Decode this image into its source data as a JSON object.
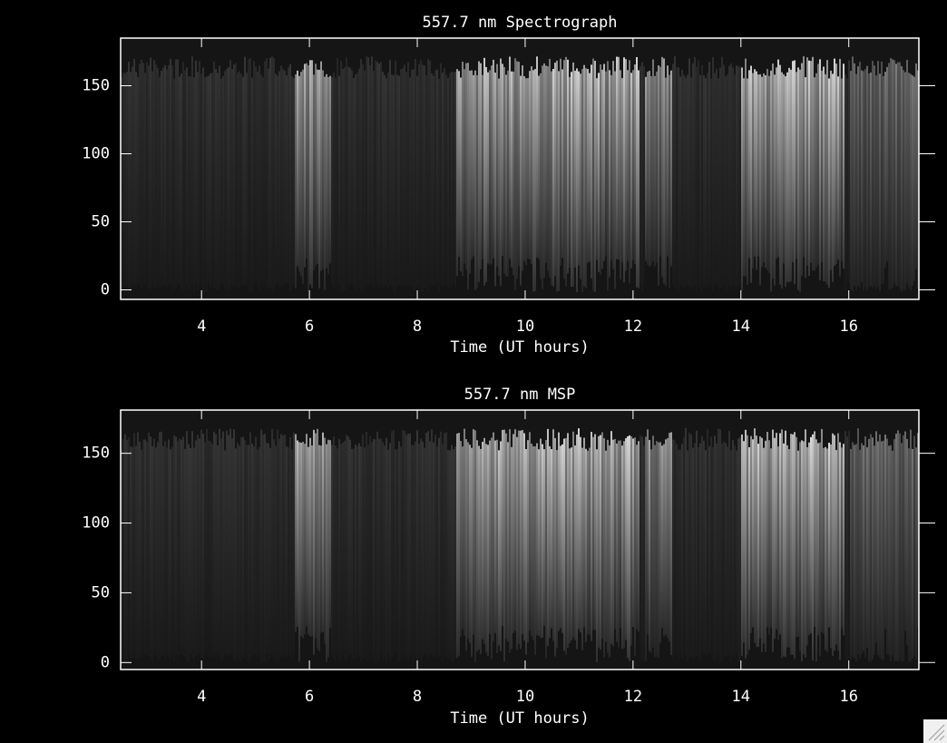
{
  "chart_data": [
    {
      "type": "image",
      "title": "557.7 nm Spectrograph",
      "x_label": "Time (UT hours)",
      "xlim": [
        2.5,
        17.3
      ],
      "xticks": [
        4,
        6,
        8,
        10,
        12,
        14,
        16
      ],
      "ylim": [
        -7,
        185
      ],
      "yticks": [
        0,
        50,
        100,
        150
      ]
    },
    {
      "type": "image",
      "title": "557.7 nm MSP",
      "x_label": "Time (UT hours)",
      "xlim": [
        2.5,
        17.3
      ],
      "xticks": [
        4,
        6,
        8,
        10,
        12,
        14,
        16
      ],
      "ylim": [
        -5,
        181
      ],
      "yticks": [
        0,
        50,
        100,
        150
      ]
    }
  ]
}
